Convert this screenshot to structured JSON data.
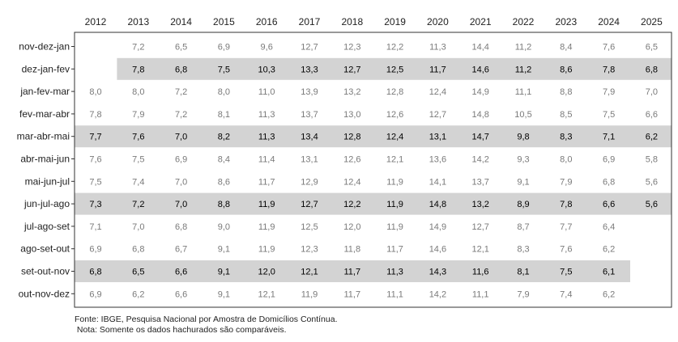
{
  "chart_data": {
    "type": "table",
    "columns": [
      "2012",
      "2013",
      "2014",
      "2015",
      "2016",
      "2017",
      "2018",
      "2019",
      "2020",
      "2021",
      "2022",
      "2023",
      "2024",
      "2025"
    ],
    "rows": [
      {
        "label": "nov-dez-jan",
        "highlight": false,
        "values": [
          null,
          "7,2",
          "6,5",
          "6,9",
          "9,6",
          "12,7",
          "12,3",
          "12,2",
          "11,3",
          "14,4",
          "11,2",
          "8,4",
          "7,6",
          "6,5"
        ]
      },
      {
        "label": "dez-jan-fev",
        "highlight": true,
        "values": [
          null,
          "7,8",
          "6,8",
          "7,5",
          "10,3",
          "13,3",
          "12,7",
          "12,5",
          "11,7",
          "14,6",
          "11,2",
          "8,6",
          "7,8",
          "6,8"
        ]
      },
      {
        "label": "jan-fev-mar",
        "highlight": false,
        "values": [
          "8,0",
          "8,0",
          "7,2",
          "8,0",
          "11,0",
          "13,9",
          "13,2",
          "12,8",
          "12,4",
          "14,9",
          "11,1",
          "8,8",
          "7,9",
          "7,0"
        ]
      },
      {
        "label": "fev-mar-abr",
        "highlight": false,
        "values": [
          "7,8",
          "7,9",
          "7,2",
          "8,1",
          "11,3",
          "13,7",
          "13,0",
          "12,6",
          "12,7",
          "14,8",
          "10,5",
          "8,5",
          "7,5",
          "6,6"
        ]
      },
      {
        "label": "mar-abr-mai",
        "highlight": true,
        "values": [
          "7,7",
          "7,6",
          "7,0",
          "8,2",
          "11,3",
          "13,4",
          "12,8",
          "12,4",
          "13,1",
          "14,7",
          "9,8",
          "8,3",
          "7,1",
          "6,2"
        ]
      },
      {
        "label": "abr-mai-jun",
        "highlight": false,
        "values": [
          "7,6",
          "7,5",
          "6,9",
          "8,4",
          "11,4",
          "13,1",
          "12,6",
          "12,1",
          "13,6",
          "14,2",
          "9,3",
          "8,0",
          "6,9",
          "5,8"
        ]
      },
      {
        "label": "mai-jun-jul",
        "highlight": false,
        "values": [
          "7,5",
          "7,4",
          "7,0",
          "8,6",
          "11,7",
          "12,9",
          "12,4",
          "11,9",
          "14,1",
          "13,7",
          "9,1",
          "7,9",
          "6,8",
          "5,6"
        ]
      },
      {
        "label": "jun-jul-ago",
        "highlight": true,
        "values": [
          "7,3",
          "7,2",
          "7,0",
          "8,8",
          "11,9",
          "12,7",
          "12,2",
          "11,9",
          "14,8",
          "13,2",
          "8,9",
          "7,8",
          "6,6",
          "5,6"
        ]
      },
      {
        "label": "jul-ago-set",
        "highlight": false,
        "values": [
          "7,1",
          "7,0",
          "6,8",
          "9,0",
          "11,9",
          "12,5",
          "12,0",
          "11,9",
          "14,9",
          "12,7",
          "8,7",
          "7,7",
          "6,4",
          null
        ]
      },
      {
        "label": "ago-set-out",
        "highlight": false,
        "values": [
          "6,9",
          "6,8",
          "6,7",
          "9,1",
          "11,9",
          "12,3",
          "11,8",
          "11,7",
          "14,6",
          "12,1",
          "8,3",
          "7,6",
          "6,2",
          null
        ]
      },
      {
        "label": "set-out-nov",
        "highlight": true,
        "values": [
          "6,8",
          "6,5",
          "6,6",
          "9,1",
          "12,0",
          "12,1",
          "11,7",
          "11,3",
          "14,3",
          "11,6",
          "8,1",
          "7,5",
          "6,1",
          null
        ]
      },
      {
        "label": "out-nov-dez",
        "highlight": false,
        "values": [
          "6,9",
          "6,2",
          "6,6",
          "9,1",
          "12,1",
          "11,9",
          "11,7",
          "11,1",
          "14,2",
          "11,1",
          "7,9",
          "7,4",
          "6,2",
          null
        ]
      }
    ],
    "highlight_color": "#d3d3d3"
  },
  "footnotes": {
    "source": "Fonte: IBGE, Pesquisa Nacional por Amostra de Domicílios Contínua.",
    "note": " Nota: Somente os dados hachurados são comparáveis."
  }
}
